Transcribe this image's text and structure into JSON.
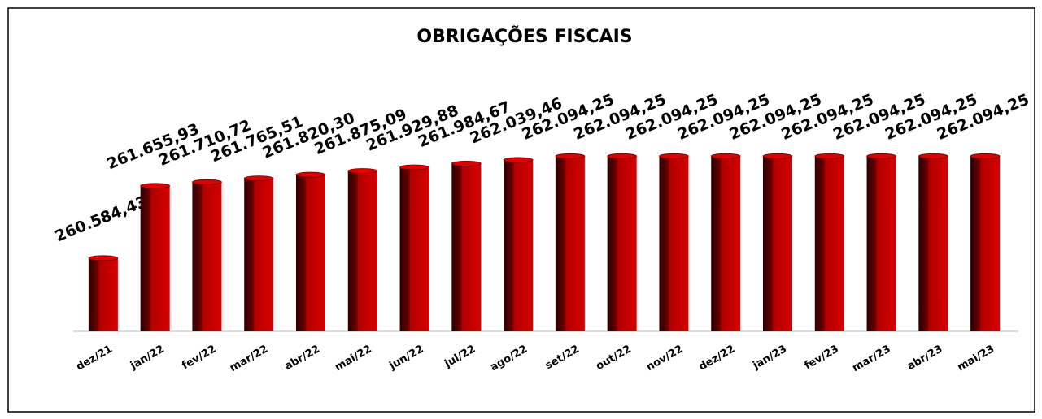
{
  "chart_data": {
    "type": "bar",
    "title": "OBRIGAÇÕES FISCAIS",
    "categories": [
      "dez/21",
      "jan/22",
      "fev/22",
      "mar/22",
      "abr/22",
      "mai/22",
      "jun/22",
      "jul/22",
      "ago/22",
      "set/22",
      "out/22",
      "nov/22",
      "dez/22",
      "jan/23",
      "fev/23",
      "mar/23",
      "abr/23",
      "mai/23"
    ],
    "values": [
      260584.43,
      261655.93,
      261710.72,
      261765.51,
      261820.3,
      261875.09,
      261929.88,
      261984.67,
      262039.46,
      262094.25,
      262094.25,
      262094.25,
      262094.25,
      262094.25,
      262094.25,
      262094.25,
      262094.25,
      262094.25
    ],
    "value_labels": [
      "260.584,43",
      "261.655,93",
      "261.710,72",
      "261.765,51",
      "261.820,30",
      "261.875,09",
      "261.929,88",
      "261.984,67",
      "262.039,46",
      "262.094,25",
      "262.094,25",
      "262.094,25",
      "262.094,25",
      "262.094,25",
      "262.094,25",
      "262.094,25",
      "262.094,25",
      "262.094,25"
    ],
    "color": "#cc0000",
    "ylim": [
      259500,
      263000
    ]
  }
}
